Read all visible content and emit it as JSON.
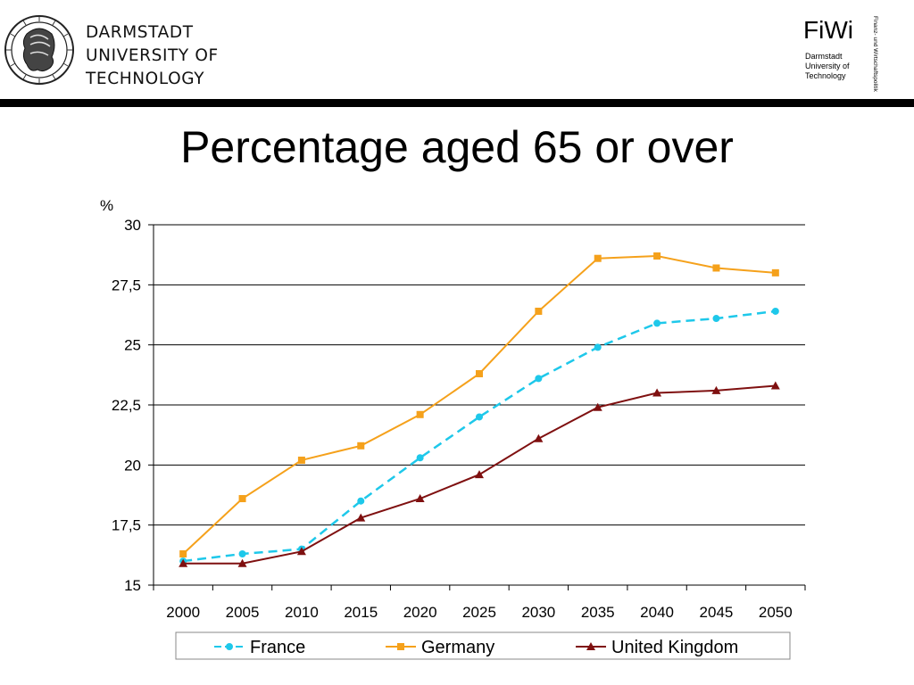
{
  "header": {
    "university_lines": [
      "DARMSTADT",
      "UNIVERSITY OF",
      "TECHNOLOGY"
    ],
    "fiwi": {
      "title": "FiWi",
      "sub_lines": [
        "Darmstadt",
        "University of",
        "Technology"
      ],
      "side_text": "Finanz- und Wirtschaftspolitik"
    }
  },
  "page_title": "Percentage aged 65 or over",
  "colors": {
    "france": "#1ec8ea",
    "germany": "#f5a11b",
    "uk": "#7f1010",
    "grid": "#000000"
  },
  "chart_data": {
    "type": "line",
    "title": "Percentage aged 65 or over",
    "ylabel": "%",
    "xlabel": "",
    "ylim": [
      15,
      30
    ],
    "yticks": [
      15,
      17.5,
      20,
      22.5,
      25,
      27.5,
      30
    ],
    "ytick_labels": [
      "15",
      "17,5",
      "20",
      "22,5",
      "25",
      "27,5",
      "30"
    ],
    "x": [
      "2000",
      "2005",
      "2010",
      "2015",
      "2020",
      "2025",
      "2030",
      "2035",
      "2040",
      "2045",
      "2050"
    ],
    "grid": "horizontal",
    "legend_position": "bottom",
    "series": [
      {
        "name": "France",
        "color": "#1ec8ea",
        "marker": "circle",
        "line_style": "dashed",
        "values": [
          16.0,
          16.3,
          16.5,
          18.5,
          20.3,
          22.0,
          23.6,
          24.9,
          25.9,
          26.1,
          26.4
        ]
      },
      {
        "name": "Germany",
        "color": "#f5a11b",
        "marker": "square",
        "line_style": "solid",
        "values": [
          16.3,
          18.6,
          20.2,
          20.8,
          22.1,
          23.8,
          26.4,
          28.6,
          28.7,
          28.2,
          28.0
        ]
      },
      {
        "name": "United Kingdom",
        "color": "#7f1010",
        "marker": "triangle",
        "line_style": "solid",
        "values": [
          15.9,
          15.9,
          16.4,
          17.8,
          18.6,
          19.6,
          21.1,
          22.4,
          23.0,
          23.1,
          23.3
        ]
      }
    ]
  }
}
